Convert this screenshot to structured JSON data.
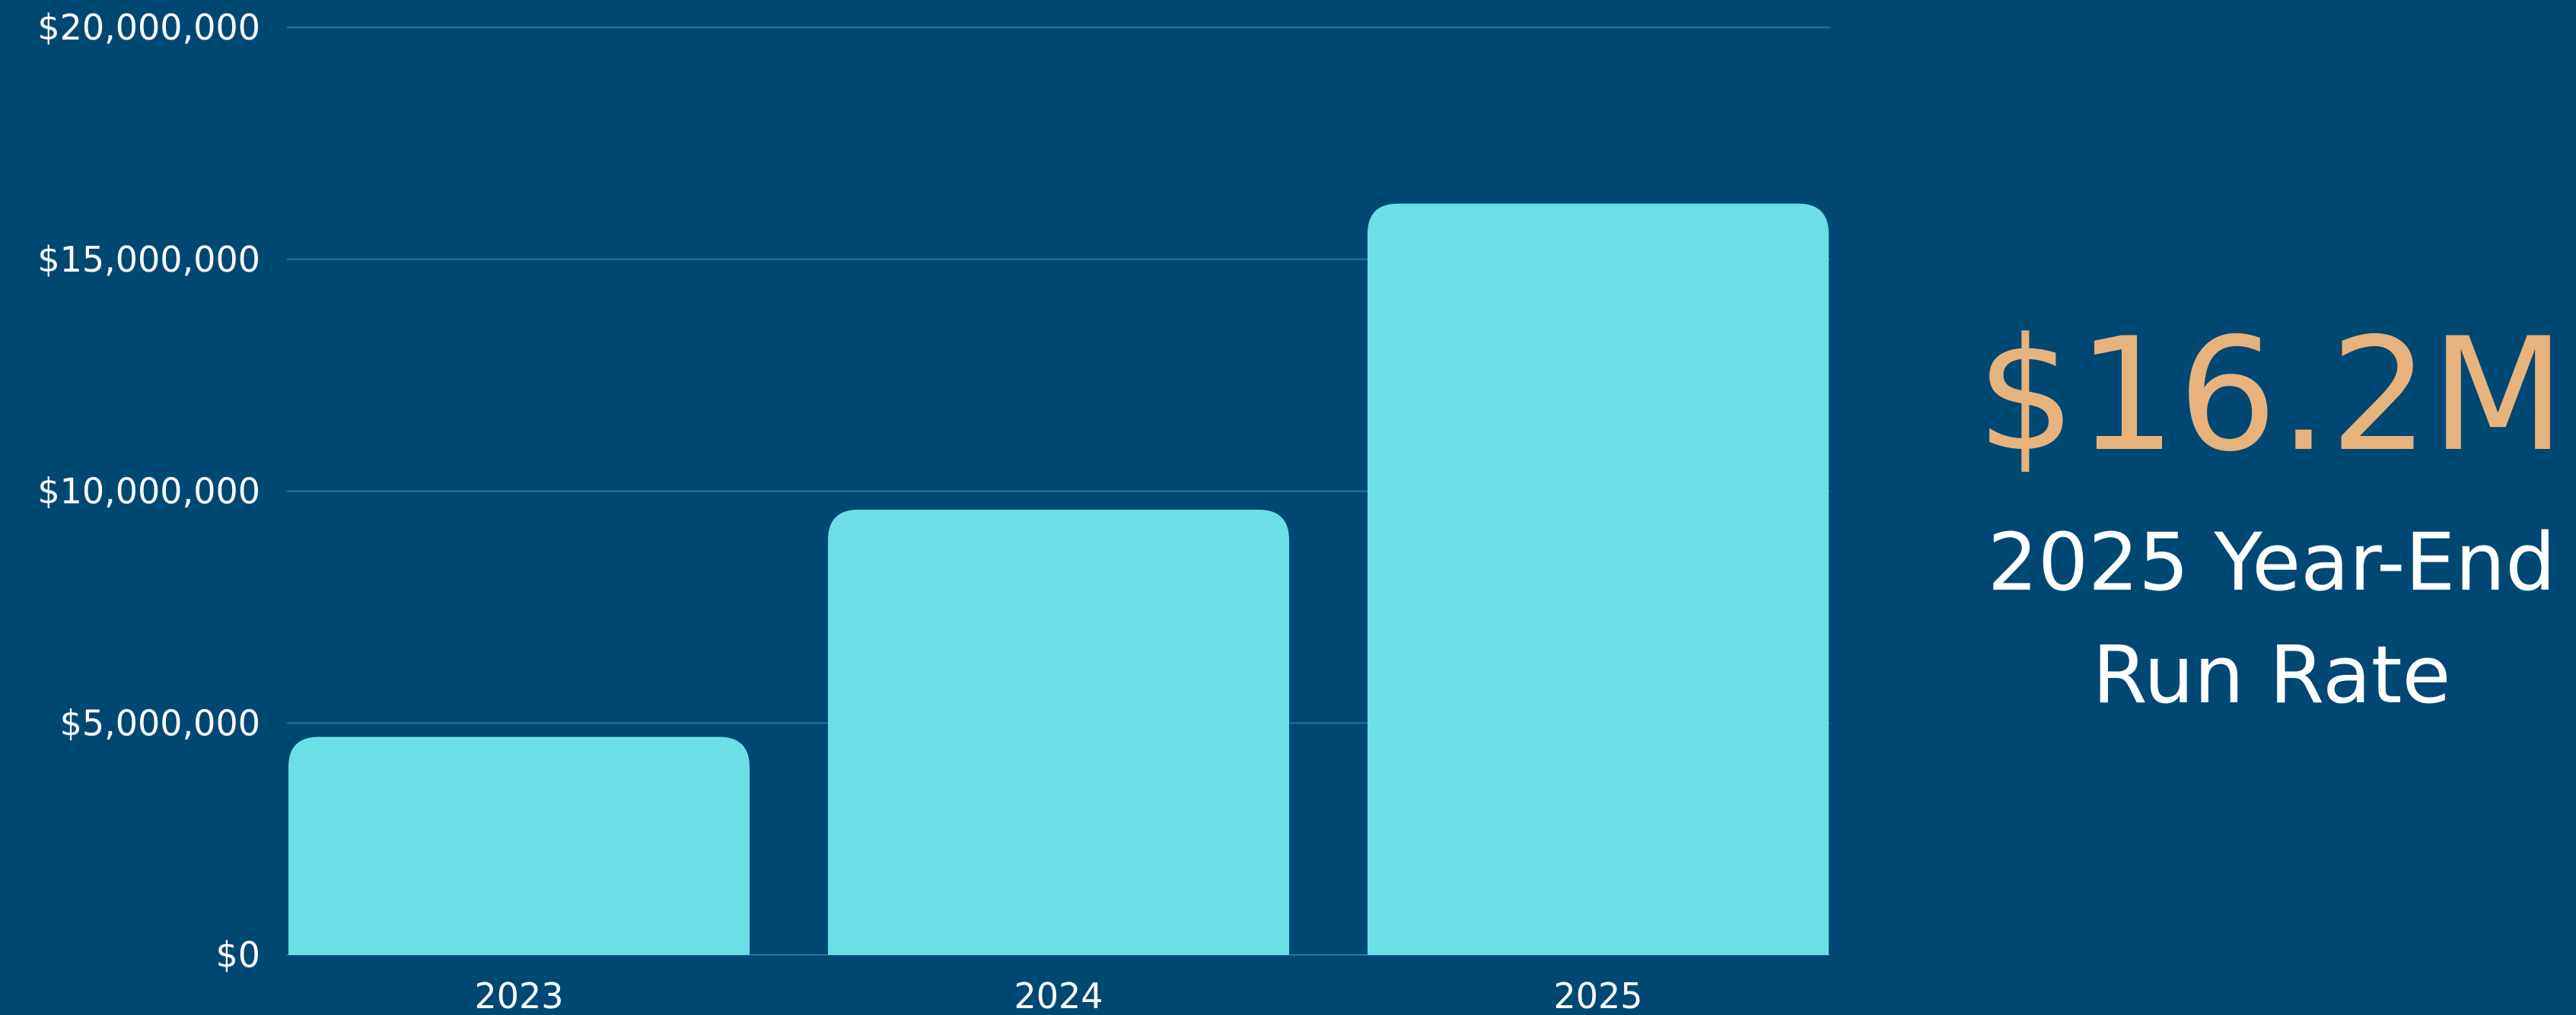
{
  "chart_data": {
    "type": "bar",
    "categories": [
      "2023",
      "2024",
      "2025"
    ],
    "values": [
      4700000,
      9600000,
      16200000
    ],
    "ylim": [
      0,
      20000000
    ],
    "yticks": [
      0,
      5000000,
      10000000,
      15000000,
      20000000
    ],
    "ytick_labels": [
      "$0",
      "$5,000,000",
      "$10,000,000",
      "$15,000,000",
      "$20,000,000"
    ],
    "grid": true,
    "colors": {
      "background": "#004874",
      "bar": "#6ae0e6",
      "grid": "#2a6f97",
      "axis_text": "#ffffff"
    }
  },
  "kpi": {
    "value": "$16.2M",
    "caption_line1": "2025 Year-End",
    "caption_line2": "Run Rate",
    "value_color": "#e8b27c"
  }
}
